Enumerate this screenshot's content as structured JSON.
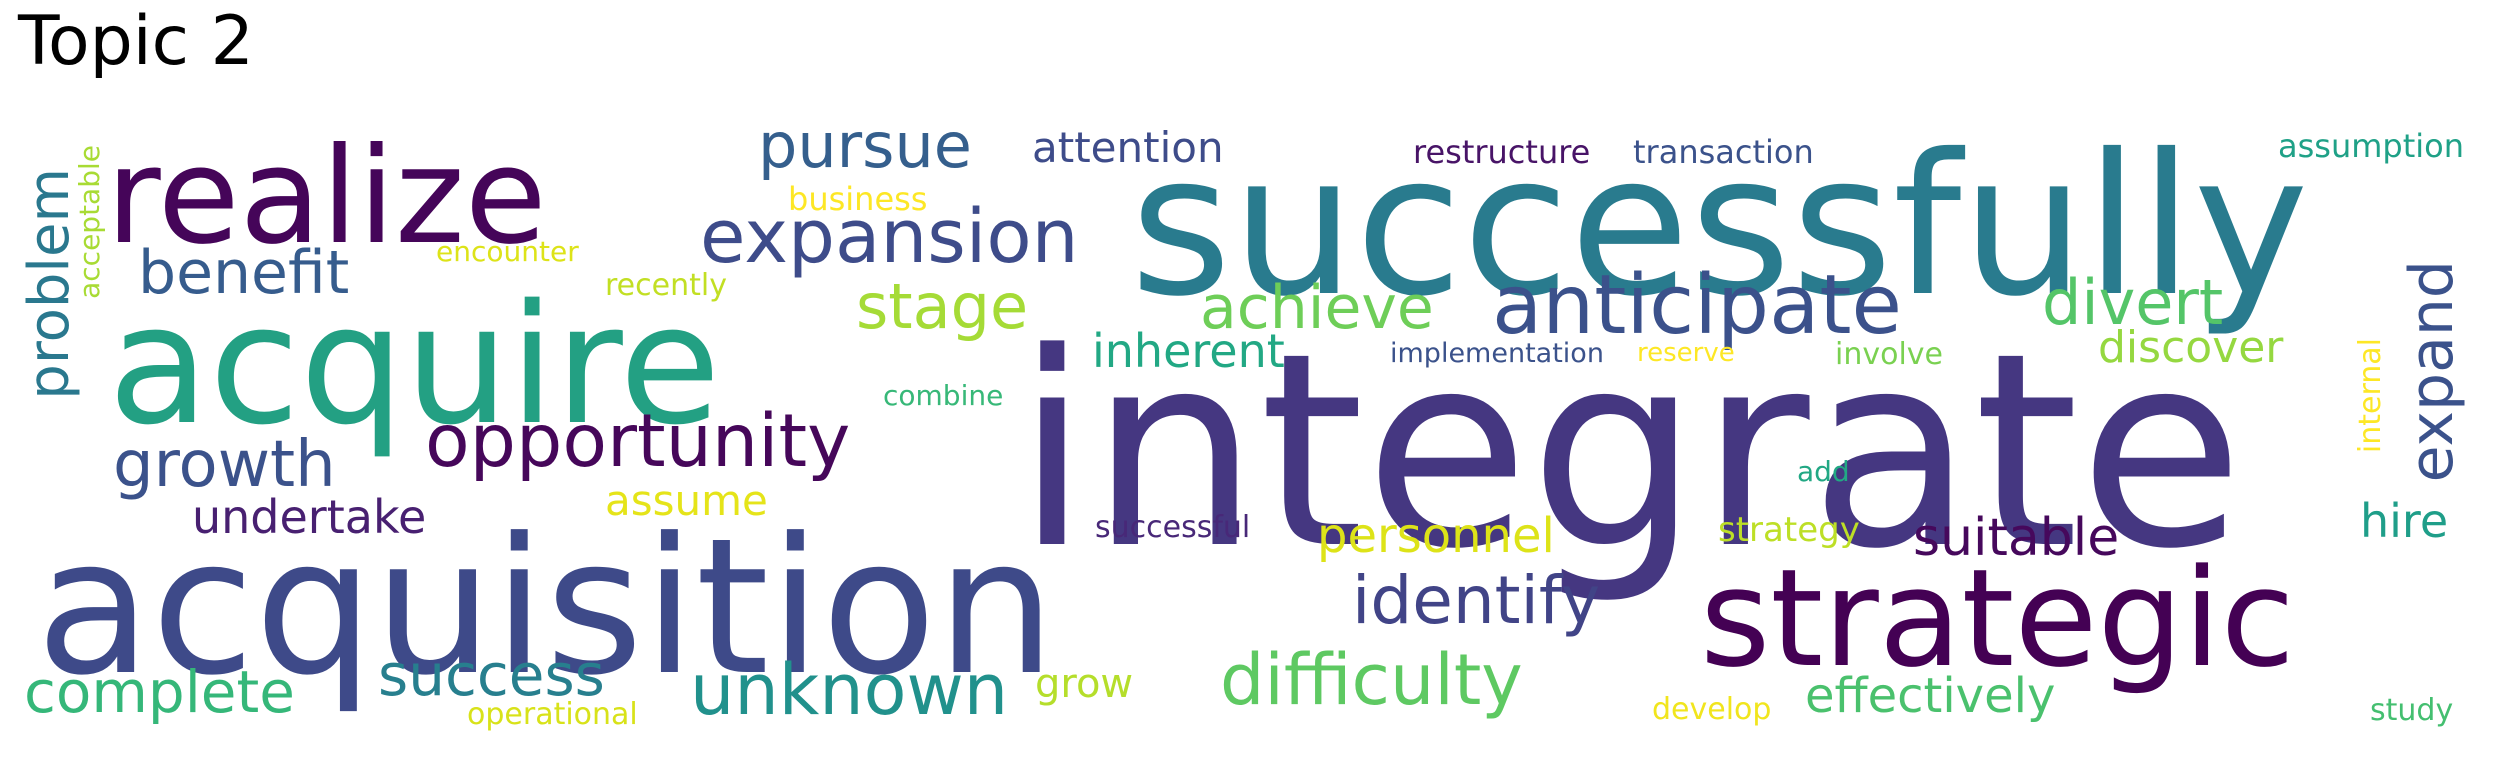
{
  "title": "Topic 2",
  "words": [
    {
      "text": "integrate",
      "color": "#453781"
    },
    {
      "text": "successfully",
      "color": "#297b8e"
    },
    {
      "text": "acquisition",
      "color": "#3e4a89"
    },
    {
      "text": "acquire",
      "color": "#23a083"
    },
    {
      "text": "strategic",
      "color": "#440154"
    },
    {
      "text": "realize",
      "color": "#450559"
    },
    {
      "text": "anticipate",
      "color": "#3b518b"
    },
    {
      "text": "expansion",
      "color": "#3e4c8a"
    },
    {
      "text": "opportunity",
      "color": "#46075a"
    },
    {
      "text": "unknown",
      "color": "#21918c"
    },
    {
      "text": "difficulty",
      "color": "#5ec962"
    },
    {
      "text": "identify",
      "color": "#414487"
    },
    {
      "text": "pursue",
      "color": "#355f8d"
    },
    {
      "text": "growth",
      "color": "#3b528b"
    },
    {
      "text": "complete",
      "color": "#35b779"
    },
    {
      "text": "success",
      "color": "#277f8e"
    },
    {
      "text": "benefit",
      "color": "#365c8d"
    },
    {
      "text": "achieve",
      "color": "#6ece58"
    },
    {
      "text": "stage",
      "color": "#a5db36"
    },
    {
      "text": "divert",
      "color": "#54c568"
    },
    {
      "text": "expand",
      "color": "#3b528b"
    },
    {
      "text": "problem",
      "color": "#2a788e"
    },
    {
      "text": "effectively",
      "color": "#4ac16d"
    },
    {
      "text": "suitable",
      "color": "#46085c"
    },
    {
      "text": "undertake",
      "color": "#482071"
    },
    {
      "text": "personnel",
      "color": "#dde318"
    },
    {
      "text": "inherent",
      "color": "#22a884"
    },
    {
      "text": "discover",
      "color": "#95d840"
    },
    {
      "text": "attention",
      "color": "#3e4c8a"
    },
    {
      "text": "hire",
      "color": "#1f9e89"
    },
    {
      "text": "assume",
      "color": "#e5e419"
    },
    {
      "text": "grow",
      "color": "#b5de2b"
    },
    {
      "text": "restructure",
      "color": "#481467"
    },
    {
      "text": "transaction",
      "color": "#3b528b"
    },
    {
      "text": "strategy",
      "color": "#bddf26"
    },
    {
      "text": "assumption",
      "color": "#1fa187"
    },
    {
      "text": "business",
      "color": "#fde725"
    },
    {
      "text": "successful",
      "color": "#482878"
    },
    {
      "text": "operational",
      "color": "#d8e219"
    },
    {
      "text": "develop",
      "color": "#f1e51d"
    },
    {
      "text": "involve",
      "color": "#7ad151"
    },
    {
      "text": "study",
      "color": "#44bf70"
    },
    {
      "text": "implementation",
      "color": "#3b528b"
    },
    {
      "text": "encounter",
      "color": "#dde318"
    },
    {
      "text": "recently",
      "color": "#c2df23"
    },
    {
      "text": "combine",
      "color": "#37b878"
    },
    {
      "text": "reserve",
      "color": "#fde725"
    },
    {
      "text": "add",
      "color": "#22a884"
    },
    {
      "text": "acceptable",
      "color": "#a8db34"
    },
    {
      "text": "internal",
      "color": "#fde725"
    }
  ]
}
